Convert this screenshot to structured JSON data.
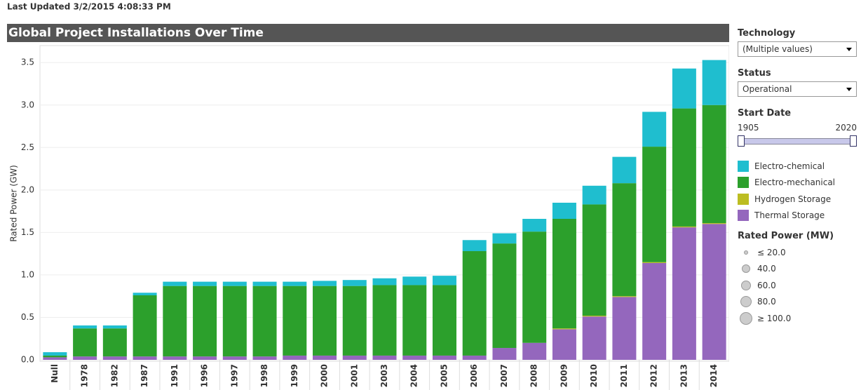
{
  "header": {
    "last_updated": "Last Updated 3/2/2015 4:08:33 PM"
  },
  "chart_data": {
    "type": "stacked-bar",
    "title": "Global Project Installations Over Time",
    "y_label": "Rated Power (GW)",
    "categories": [
      "Null",
      "1978",
      "1982",
      "1987",
      "1991",
      "1996",
      "1997",
      "1998",
      "1999",
      "2000",
      "2001",
      "2003",
      "2004",
      "2005",
      "2006",
      "2007",
      "2008",
      "2009",
      "2010",
      "2011",
      "2012",
      "2013",
      "2014"
    ],
    "series": [
      {
        "name": "Electro-chemical",
        "color": "#1fbecf",
        "values": [
          0.04,
          0.035,
          0.035,
          0.03,
          0.05,
          0.05,
          0.05,
          0.05,
          0.05,
          0.06,
          0.07,
          0.08,
          0.1,
          0.11,
          0.13,
          0.12,
          0.15,
          0.19,
          0.22,
          0.31,
          0.41,
          0.47,
          0.53
        ]
      },
      {
        "name": "Electro-mechanical",
        "color": "#2ca02c",
        "values": [
          0.02,
          0.33,
          0.33,
          0.72,
          0.83,
          0.83,
          0.83,
          0.83,
          0.82,
          0.82,
          0.82,
          0.83,
          0.83,
          0.83,
          1.23,
          1.23,
          1.31,
          1.29,
          1.31,
          1.33,
          1.36,
          1.39,
          1.39
        ]
      },
      {
        "name": "Hydrogen Storage",
        "color": "#bcbd22",
        "values": [
          0,
          0,
          0,
          0,
          0,
          0,
          0,
          0,
          0,
          0,
          0,
          0,
          0,
          0,
          0,
          0,
          0,
          0.01,
          0.01,
          0.01,
          0.01,
          0.01,
          0.01
        ]
      },
      {
        "name": "Thermal Storage",
        "color": "#9467bd",
        "values": [
          0.03,
          0.04,
          0.04,
          0.04,
          0.04,
          0.04,
          0.04,
          0.04,
          0.05,
          0.05,
          0.05,
          0.05,
          0.05,
          0.05,
          0.05,
          0.14,
          0.2,
          0.36,
          0.51,
          0.74,
          1.14,
          1.56,
          1.6
        ]
      }
    ],
    "ylim": [
      0,
      3.7
    ],
    "yticks": [
      {
        "value": 0,
        "label": "0.0"
      },
      0.5,
      {
        "value": 1,
        "label": "1.0"
      },
      1.5,
      {
        "value": 2,
        "label": "2.0"
      },
      2.5,
      {
        "value": 3,
        "label": "3.0"
      },
      3.5
    ],
    "grid": true
  },
  "filters": {
    "technology": {
      "label": "Technology",
      "value": "(Multiple values)"
    },
    "status": {
      "label": "Status",
      "value": "Operational"
    },
    "start_date": {
      "label": "Start Date",
      "min": "1905",
      "max": "2020"
    }
  },
  "size_legend": {
    "title": "Rated Power (MW)",
    "items": [
      "≤ 20.0",
      "40.0",
      "60.0",
      "80.0",
      "≥ 100.0"
    ]
  }
}
